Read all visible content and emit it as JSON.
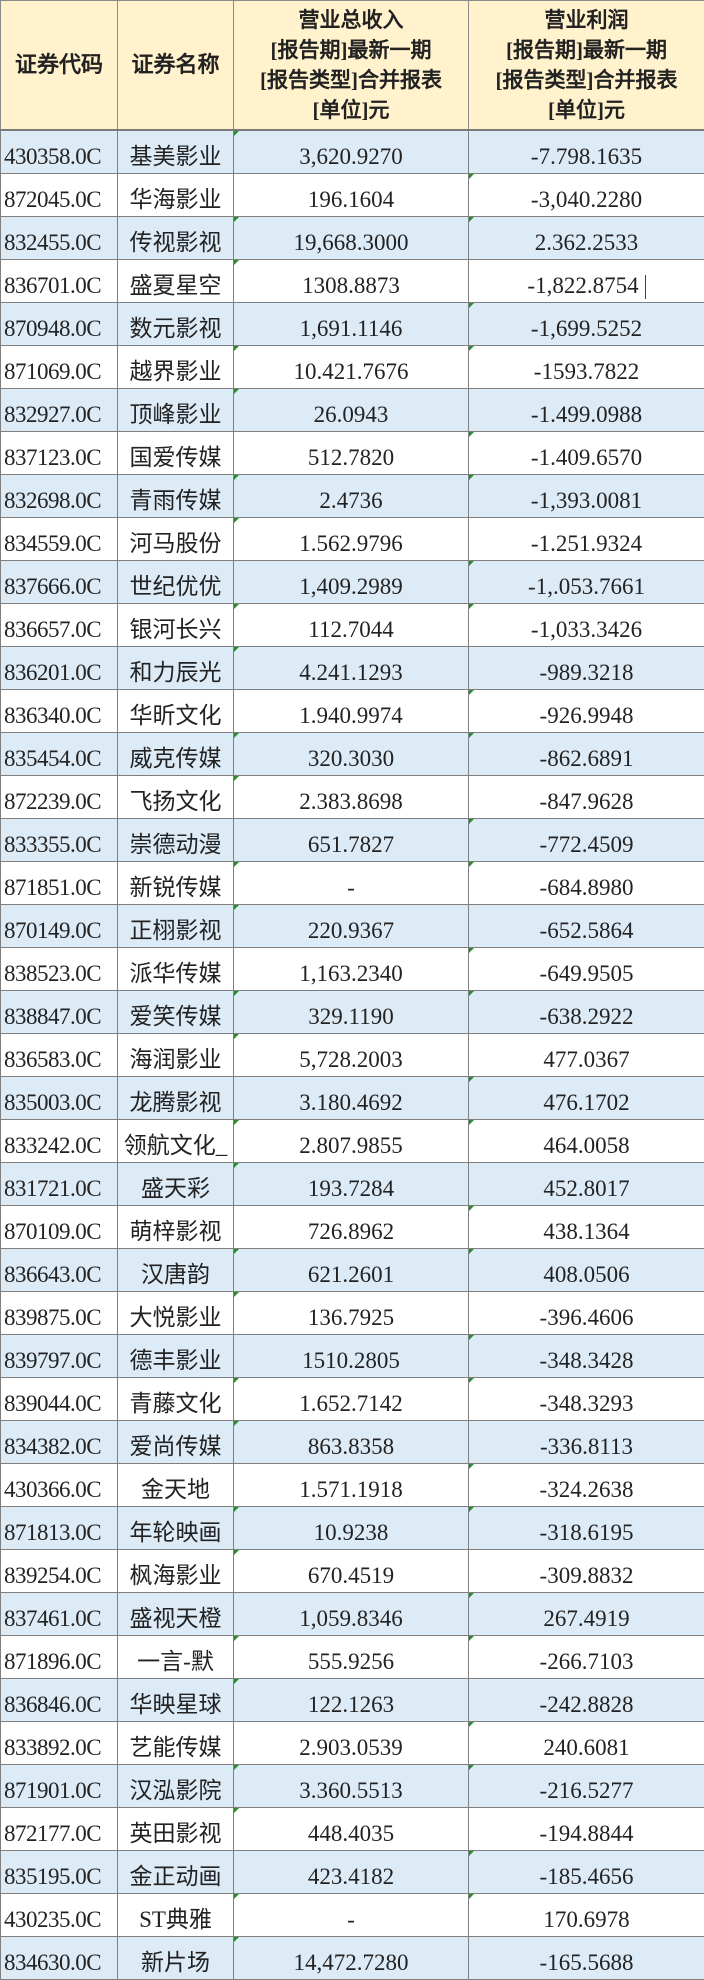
{
  "header": {
    "code": "证券代码",
    "name": "证券名称",
    "revenue": [
      "营业总收入",
      "[报告期]最新一期",
      "[报告类型]合并报表",
      "[单位]元"
    ],
    "profit": [
      "营业利润",
      "[报告期]最新一期",
      "[报告类型]合并报表",
      "[单位]元"
    ]
  },
  "colors": {
    "header_bg": "#fff2cc",
    "alt_row_bg": "#ddebf7",
    "grid": "#7f7f7f"
  },
  "rows": [
    [
      "430358.0C",
      "基美影业",
      "3,620.9270",
      "-7.798.1635"
    ],
    [
      "872045.0C",
      "华海影业",
      "196.1604",
      "-3,040.2280"
    ],
    [
      "832455.0C",
      "传视影视",
      "19,668.3000",
      "2.362.2533"
    ],
    [
      "836701.0C",
      "盛夏星空",
      "1308.8873",
      "-1,822.8754"
    ],
    [
      "870948.0C",
      "数元影视",
      "1,691.1146",
      "-1,699.5252"
    ],
    [
      "871069.0C",
      "越界影业",
      "10.421.7676",
      "-1593.7822"
    ],
    [
      "832927.0C",
      "顶峰影业",
      "26.0943",
      "-1.499.0988"
    ],
    [
      "837123.0C",
      "国爱传媒",
      "512.7820",
      "-1.409.6570"
    ],
    [
      "832698.0C",
      "青雨传媒",
      "2.4736",
      "-1,393.0081"
    ],
    [
      "834559.0C",
      "河马股份",
      "1.562.9796",
      "-1.251.9324"
    ],
    [
      "837666.0C",
      "世纪优优",
      "1,409.2989",
      "-1,.053.7661"
    ],
    [
      "836657.0C",
      "银河长兴",
      "112.7044",
      "-1,033.3426"
    ],
    [
      "836201.0C",
      "和力辰光",
      "4.241.1293",
      "-989.3218"
    ],
    [
      "836340.0C",
      "华昕文化",
      "1.940.9974",
      "-926.9948"
    ],
    [
      "835454.0C",
      "威克传媒",
      "320.3030",
      "-862.6891"
    ],
    [
      "872239.0C",
      "飞扬文化",
      "2.383.8698",
      "-847.9628"
    ],
    [
      "833355.0C",
      "崇德动漫",
      "651.7827",
      "-772.4509"
    ],
    [
      "871851.0C",
      "新锐传媒",
      "-",
      "-684.8980"
    ],
    [
      "870149.0C",
      "正栩影视",
      "220.9367",
      "-652.5864"
    ],
    [
      "838523.0C",
      "派华传媒",
      "1,163.2340",
      "-649.9505"
    ],
    [
      "838847.0C",
      "爱笑传媒",
      "329.1190",
      "-638.2922"
    ],
    [
      "836583.0C",
      "海润影业",
      "5,728.2003",
      "477.0367"
    ],
    [
      "835003.0C",
      "龙腾影视",
      "3.180.4692",
      "476.1702"
    ],
    [
      "833242.0C",
      "领航文化_",
      "2.807.9855",
      "464.0058"
    ],
    [
      "831721.0C",
      "盛天彩",
      "193.7284",
      "452.8017"
    ],
    [
      "870109.0C",
      "萌梓影视",
      "726.8962",
      "438.1364"
    ],
    [
      "836643.0C",
      "汉唐韵",
      "621.2601",
      "408.0506"
    ],
    [
      "839875.0C",
      "大悦影业",
      "136.7925",
      "-396.4606"
    ],
    [
      "839797.0C",
      "德丰影业",
      "1510.2805",
      "-348.3428"
    ],
    [
      "839044.0C",
      "青藤文化",
      "1.652.7142",
      "-348.3293"
    ],
    [
      "834382.0C",
      "爱尚传媒",
      "863.8358",
      "-336.8113"
    ],
    [
      "430366.0C",
      "金天地",
      "1.571.1918",
      "-324.2638"
    ],
    [
      "871813.0C",
      "年轮映画",
      "10.9238",
      "-318.6195"
    ],
    [
      "839254.0C",
      "枫海影业",
      "670.4519",
      "-309.8832"
    ],
    [
      "837461.0C",
      "盛视天橙",
      "1,059.8346",
      "267.4919"
    ],
    [
      "871896.0C",
      "一言-默",
      "555.9256",
      "-266.7103"
    ],
    [
      "836846.0C",
      "华映星球",
      "122.1263",
      "-242.8828"
    ],
    [
      "833892.0C",
      "艺能传媒",
      "2.903.0539",
      "240.6081"
    ],
    [
      "871901.0C",
      "汉泓影院",
      "3.360.5513",
      "-216.5277"
    ],
    [
      "872177.0C",
      "英田影视",
      "448.4035",
      "-194.8844"
    ],
    [
      "835195.0C",
      "金正动画",
      "423.4182",
      "-185.4656"
    ],
    [
      "430235.0C",
      "ST典雅",
      "-",
      "170.6978"
    ],
    [
      "834630.0C",
      "新片场",
      "14,472.7280",
      "-165.5688"
    ]
  ]
}
